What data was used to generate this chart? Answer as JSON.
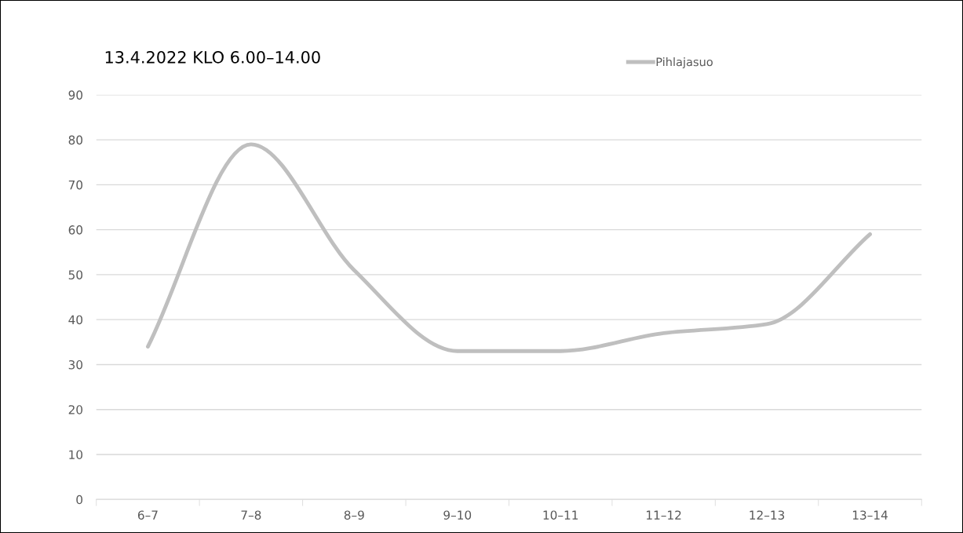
{
  "chart_data": {
    "type": "line",
    "title": "13.4.2022 KLO 6.00–14.00",
    "categories": [
      "6–7",
      "7–8",
      "8–9",
      "9–10",
      "10–11",
      "11–12",
      "12–13",
      "13–14"
    ],
    "series": [
      {
        "name": "Pihlajasuo",
        "color": "#bfbfbf",
        "values": [
          34,
          79,
          51,
          33,
          33,
          37,
          39,
          59
        ]
      }
    ],
    "ylim": [
      0,
      90
    ],
    "yticks": [
      0,
      10,
      20,
      30,
      40,
      50,
      60,
      70,
      80,
      90
    ],
    "grid": "y",
    "legend": "top right",
    "marker": "none",
    "line_style": "solid"
  }
}
